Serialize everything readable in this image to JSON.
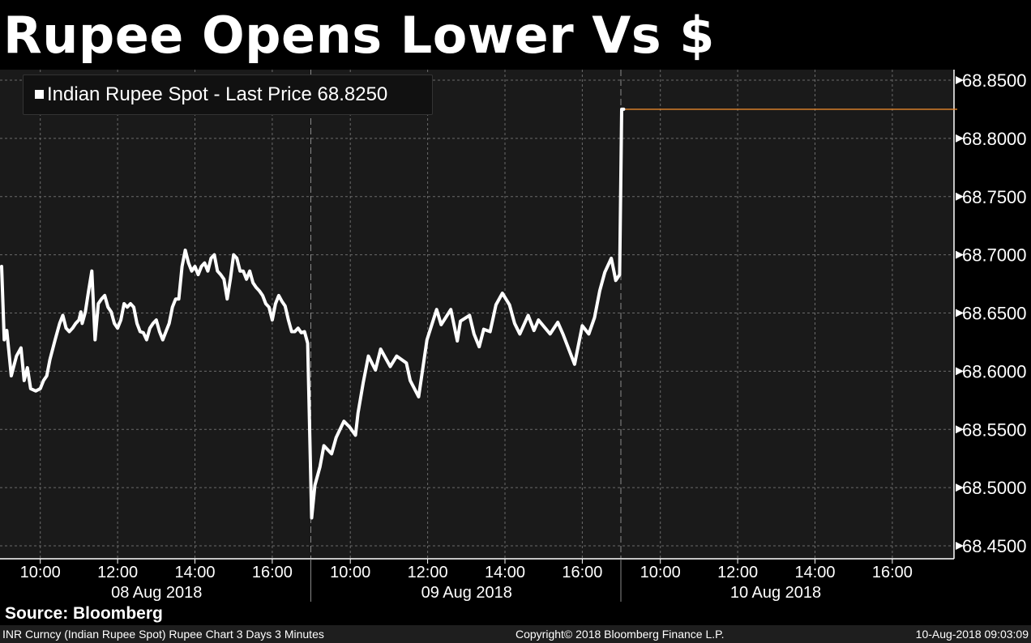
{
  "title": "Rupee Opens Lower Vs $",
  "source": "Source: Bloomberg",
  "footer": {
    "left": "INR Curncy (Indian Rupee Spot) Rupee Chart 3 Days 3 Minutes",
    "center": "Copyright© 2018 Bloomberg Finance L.P.",
    "right": "10-Aug-2018 09:03:09"
  },
  "colors": {
    "background": "#000000",
    "plot": "#1a1a1a",
    "line": "#ffffff",
    "last_price_line": "#e8872a",
    "grid": "#6a6a6a"
  },
  "chart_data": {
    "type": "line",
    "title": "Rupee Opens Lower Vs $",
    "legend": {
      "position": "top-left",
      "label": "Indian Rupee Spot - Last Price 68.8250"
    },
    "series": [
      {
        "name": "Indian Rupee Spot",
        "last_price": "68.8250"
      }
    ],
    "ylim": [
      68.45,
      68.85
    ],
    "yticks": [
      "68.4500",
      "68.5000",
      "68.5500",
      "68.6000",
      "68.6500",
      "68.7000",
      "68.7500",
      "68.8000",
      "68.8500"
    ],
    "y_axis_side": "right",
    "grid": true,
    "days": [
      {
        "label": "08 Aug 2018",
        "ticks": [
          "10:00",
          "12:00",
          "14:00",
          "16:00"
        ],
        "points": [
          [
            "09:00",
            68.69
          ],
          [
            "09:04",
            68.627
          ],
          [
            "09:08",
            68.635
          ],
          [
            "09:15",
            68.596
          ],
          [
            "09:23",
            68.613
          ],
          [
            "09:30",
            68.62
          ],
          [
            "09:35",
            68.592
          ],
          [
            "09:40",
            68.603
          ],
          [
            "09:45",
            68.585
          ],
          [
            "09:53",
            68.583
          ],
          [
            "10:00",
            68.585
          ],
          [
            "10:05",
            68.592
          ],
          [
            "10:10",
            68.596
          ],
          [
            "10:15",
            68.61
          ],
          [
            "10:23",
            68.627
          ],
          [
            "10:30",
            68.641
          ],
          [
            "10:35",
            68.648
          ],
          [
            "10:40",
            68.637
          ],
          [
            "10:45",
            68.634
          ],
          [
            "10:50",
            68.637
          ],
          [
            "10:55",
            68.641
          ],
          [
            "11:00",
            68.644
          ],
          [
            "11:03",
            68.651
          ],
          [
            "11:05",
            68.641
          ],
          [
            "11:10",
            68.651
          ],
          [
            "11:15",
            68.669
          ],
          [
            "11:20",
            68.686
          ],
          [
            "11:25",
            68.627
          ],
          [
            "11:30",
            68.658
          ],
          [
            "11:35",
            68.662
          ],
          [
            "11:40",
            68.665
          ],
          [
            "11:45",
            68.655
          ],
          [
            "11:50",
            68.651
          ],
          [
            "11:55",
            68.641
          ],
          [
            "12:00",
            68.637
          ],
          [
            "12:05",
            68.644
          ],
          [
            "12:10",
            68.658
          ],
          [
            "12:15",
            68.655
          ],
          [
            "12:20",
            68.658
          ],
          [
            "12:25",
            68.655
          ],
          [
            "12:30",
            68.641
          ],
          [
            "12:35",
            68.634
          ],
          [
            "12:40",
            68.633
          ],
          [
            "12:45",
            68.627
          ],
          [
            "12:50",
            68.637
          ],
          [
            "12:55",
            68.641
          ],
          [
            "13:00",
            68.644
          ],
          [
            "13:05",
            68.634
          ],
          [
            "13:10",
            68.627
          ],
          [
            "13:15",
            68.634
          ],
          [
            "13:20",
            68.641
          ],
          [
            "13:25",
            68.655
          ],
          [
            "13:30",
            68.662
          ],
          [
            "13:35",
            68.662
          ],
          [
            "13:40",
            68.69
          ],
          [
            "13:45",
            68.704
          ],
          [
            "13:50",
            68.693
          ],
          [
            "13:55",
            68.686
          ],
          [
            "14:00",
            68.69
          ],
          [
            "14:05",
            68.683
          ],
          [
            "14:10",
            68.69
          ],
          [
            "14:15",
            68.693
          ],
          [
            "14:20",
            68.686
          ],
          [
            "14:25",
            68.697
          ],
          [
            "14:30",
            68.7
          ],
          [
            "14:35",
            68.686
          ],
          [
            "14:40",
            68.683
          ],
          [
            "14:45",
            68.679
          ],
          [
            "14:50",
            68.662
          ],
          [
            "14:55",
            68.679
          ],
          [
            "15:00",
            68.7
          ],
          [
            "15:05",
            68.697
          ],
          [
            "15:10",
            68.686
          ],
          [
            "15:15",
            68.686
          ],
          [
            "15:20",
            68.679
          ],
          [
            "15:25",
            68.686
          ],
          [
            "15:30",
            68.676
          ],
          [
            "15:35",
            68.672
          ],
          [
            "15:40",
            68.669
          ],
          [
            "15:45",
            68.665
          ],
          [
            "15:50",
            68.658
          ],
          [
            "15:55",
            68.655
          ],
          [
            "16:00",
            68.644
          ],
          [
            "16:05",
            68.658
          ],
          [
            "16:10",
            68.665
          ],
          [
            "16:15",
            68.66
          ],
          [
            "16:20",
            68.656
          ],
          [
            "16:25",
            68.644
          ],
          [
            "16:30",
            68.634
          ],
          [
            "16:35",
            68.634
          ],
          [
            "16:40",
            68.637
          ],
          [
            "16:45",
            68.633
          ],
          [
            "16:50",
            68.634
          ],
          [
            "16:55",
            68.624
          ]
        ]
      },
      {
        "label": "09 Aug 2018",
        "ticks": [
          "10:00",
          "12:00",
          "14:00",
          "16:00"
        ],
        "points": [
          [
            "09:00",
            68.474
          ],
          [
            "09:05",
            68.502
          ],
          [
            "09:13",
            68.518
          ],
          [
            "09:19",
            68.536
          ],
          [
            "09:31",
            68.529
          ],
          [
            "09:38",
            68.543
          ],
          [
            "09:50",
            68.557
          ],
          [
            "09:59",
            68.552
          ],
          [
            "10:08",
            68.545
          ],
          [
            "10:12",
            68.564
          ],
          [
            "10:20",
            68.59
          ],
          [
            "10:28",
            68.613
          ],
          [
            "10:39",
            68.601
          ],
          [
            "10:47",
            68.619
          ],
          [
            "11:02",
            68.604
          ],
          [
            "11:12",
            68.613
          ],
          [
            "11:27",
            68.607
          ],
          [
            "11:33",
            68.592
          ],
          [
            "11:46",
            68.578
          ],
          [
            "11:59",
            68.627
          ],
          [
            "12:14",
            68.653
          ],
          [
            "12:21",
            68.64
          ],
          [
            "12:36",
            68.653
          ],
          [
            "12:46",
            68.626
          ],
          [
            "12:51",
            68.643
          ],
          [
            "13:05",
            68.648
          ],
          [
            "13:12",
            68.632
          ],
          [
            "13:20",
            68.621
          ],
          [
            "13:27",
            68.636
          ],
          [
            "13:37",
            68.634
          ],
          [
            "13:46",
            68.657
          ],
          [
            "13:56",
            68.667
          ],
          [
            "14:07",
            68.657
          ],
          [
            "14:15",
            68.641
          ],
          [
            "14:23",
            68.632
          ],
          [
            "14:36",
            68.648
          ],
          [
            "14:45",
            68.635
          ],
          [
            "14:52",
            68.644
          ],
          [
            "15:10",
            68.632
          ],
          [
            "15:22",
            68.642
          ],
          [
            "15:30",
            68.632
          ],
          [
            "15:48",
            68.606
          ],
          [
            "16:00",
            68.639
          ],
          [
            "16:10",
            68.632
          ],
          [
            "16:19",
            68.646
          ],
          [
            "16:27",
            68.669
          ],
          [
            "16:35",
            68.685
          ],
          [
            "16:45",
            68.697
          ],
          [
            "16:52",
            68.678
          ],
          [
            "16:58",
            68.683
          ]
        ]
      },
      {
        "label": "10 Aug 2018",
        "ticks": [
          "10:00",
          "12:00",
          "14:00",
          "16:00"
        ],
        "points": [
          [
            "09:00",
            68.825
          ],
          [
            "09:03",
            68.825
          ]
        ]
      }
    ],
    "last_price_line": 68.825
  }
}
